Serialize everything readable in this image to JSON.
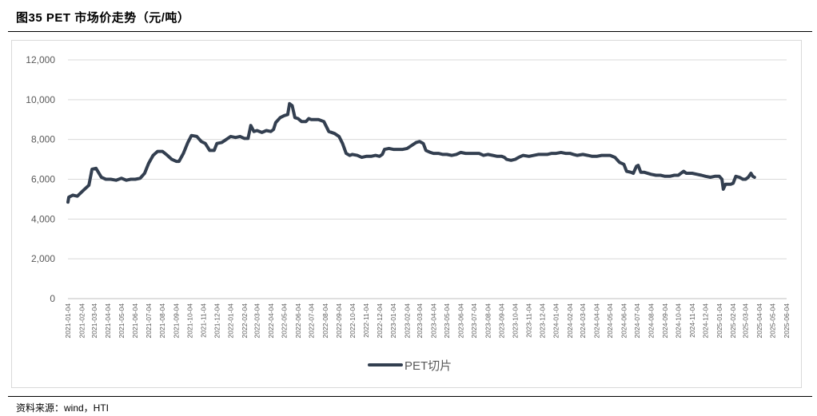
{
  "figure": {
    "title": "图35  PET 市场价走势（元/吨）",
    "source": "资料来源：wind，HTI"
  },
  "chart_data": {
    "type": "line",
    "title": "",
    "xlabel": "",
    "ylabel": "",
    "ylim": [
      0,
      12000
    ],
    "yticks": [
      0,
      2000,
      4000,
      6000,
      8000,
      10000,
      12000
    ],
    "ytick_labels": [
      "0",
      "2,000",
      "4,000",
      "6,000",
      "8,000",
      "10,000",
      "12,000"
    ],
    "xticks": [
      "2021-01-04",
      "2021-02-04",
      "2021-03-04",
      "2021-04-04",
      "2021-05-04",
      "2021-06-04",
      "2021-07-04",
      "2021-08-04",
      "2021-09-04",
      "2021-10-04",
      "2021-11-04",
      "2021-12-04",
      "2022-01-04",
      "2022-02-04",
      "2022-03-04",
      "2022-04-04",
      "2022-05-04",
      "2022-06-04",
      "2022-07-04",
      "2022-08-04",
      "2022-09-04",
      "2022-10-04",
      "2022-11-04",
      "2022-12-04",
      "2023-01-04",
      "2023-02-04",
      "2023-03-04",
      "2023-04-04",
      "2023-05-04",
      "2023-06-04",
      "2023-07-04",
      "2023-08-04",
      "2023-09-04",
      "2023-10-04",
      "2023-11-04",
      "2023-12-04",
      "2024-01-04",
      "2024-02-04",
      "2024-03-04",
      "2024-04-04",
      "2024-05-04",
      "2024-06-04",
      "2024-07-04",
      "2024-08-04",
      "2024-09-04",
      "2024-10-04",
      "2024-11-04",
      "2024-12-04",
      "2025-01-04",
      "2025-02-04",
      "2025-03-04",
      "2025-04-04",
      "2025-05-04",
      "2025-06-04"
    ],
    "grid": true,
    "legend": "bottom",
    "series": [
      {
        "name": "PET切片",
        "color": "#333f50",
        "points": [
          [
            "2021-01-04",
            4850
          ],
          [
            "2021-01-06",
            5100
          ],
          [
            "2021-01-15",
            5200
          ],
          [
            "2021-01-25",
            5150
          ],
          [
            "2021-02-08",
            5450
          ],
          [
            "2021-02-20",
            5700
          ],
          [
            "2021-02-27",
            6500
          ],
          [
            "2021-03-08",
            6550
          ],
          [
            "2021-03-20",
            6100
          ],
          [
            "2021-03-30",
            6000
          ],
          [
            "2021-04-10",
            6000
          ],
          [
            "2021-04-22",
            5950
          ],
          [
            "2021-05-04",
            6050
          ],
          [
            "2021-05-15",
            5950
          ],
          [
            "2021-05-25",
            6000
          ],
          [
            "2021-06-04",
            6000
          ],
          [
            "2021-06-15",
            6050
          ],
          [
            "2021-06-25",
            6300
          ],
          [
            "2021-07-04",
            6800
          ],
          [
            "2021-07-14",
            7200
          ],
          [
            "2021-07-24",
            7400
          ],
          [
            "2021-08-04",
            7400
          ],
          [
            "2021-08-15",
            7200
          ],
          [
            "2021-08-25",
            7000
          ],
          [
            "2021-09-04",
            6900
          ],
          [
            "2021-09-10",
            6900
          ],
          [
            "2021-09-20",
            7300
          ],
          [
            "2021-09-30",
            7850
          ],
          [
            "2021-10-08",
            8200
          ],
          [
            "2021-10-20",
            8150
          ],
          [
            "2021-10-30",
            7900
          ],
          [
            "2021-11-08",
            7800
          ],
          [
            "2021-11-18",
            7450
          ],
          [
            "2021-11-28",
            7450
          ],
          [
            "2021-12-04",
            7800
          ],
          [
            "2021-12-15",
            7850
          ],
          [
            "2021-12-25",
            8000
          ],
          [
            "2022-01-04",
            8150
          ],
          [
            "2022-01-15",
            8100
          ],
          [
            "2022-01-25",
            8150
          ],
          [
            "2022-02-04",
            8050
          ],
          [
            "2022-02-12",
            8050
          ],
          [
            "2022-02-18",
            8700
          ],
          [
            "2022-02-25",
            8400
          ],
          [
            "2022-03-04",
            8450
          ],
          [
            "2022-03-15",
            8350
          ],
          [
            "2022-03-25",
            8450
          ],
          [
            "2022-04-04",
            8400
          ],
          [
            "2022-04-10",
            8500
          ],
          [
            "2022-04-15",
            8850
          ],
          [
            "2022-04-25",
            9100
          ],
          [
            "2022-05-04",
            9200
          ],
          [
            "2022-05-12",
            9250
          ],
          [
            "2022-05-16",
            9800
          ],
          [
            "2022-05-22",
            9700
          ],
          [
            "2022-05-28",
            9100
          ],
          [
            "2022-06-04",
            9050
          ],
          [
            "2022-06-12",
            8900
          ],
          [
            "2022-06-22",
            8900
          ],
          [
            "2022-06-28",
            9050
          ],
          [
            "2022-07-04",
            9000
          ],
          [
            "2022-07-20",
            9000
          ],
          [
            "2022-08-01",
            8900
          ],
          [
            "2022-08-12",
            8400
          ],
          [
            "2022-08-25",
            8300
          ],
          [
            "2022-09-04",
            8150
          ],
          [
            "2022-09-12",
            7800
          ],
          [
            "2022-09-20",
            7300
          ],
          [
            "2022-09-28",
            7200
          ],
          [
            "2022-10-04",
            7250
          ],
          [
            "2022-10-15",
            7200
          ],
          [
            "2022-10-25",
            7100
          ],
          [
            "2022-11-04",
            7150
          ],
          [
            "2022-11-15",
            7150
          ],
          [
            "2022-11-25",
            7200
          ],
          [
            "2022-12-04",
            7150
          ],
          [
            "2022-12-10",
            7250
          ],
          [
            "2022-12-15",
            7500
          ],
          [
            "2022-12-25",
            7550
          ],
          [
            "2023-01-04",
            7500
          ],
          [
            "2023-01-15",
            7500
          ],
          [
            "2023-01-25",
            7500
          ],
          [
            "2023-02-04",
            7550
          ],
          [
            "2023-02-14",
            7700
          ],
          [
            "2023-02-24",
            7850
          ],
          [
            "2023-03-04",
            7900
          ],
          [
            "2023-03-12",
            7800
          ],
          [
            "2023-03-18",
            7450
          ],
          [
            "2023-03-28",
            7350
          ],
          [
            "2023-04-04",
            7300
          ],
          [
            "2023-04-15",
            7300
          ],
          [
            "2023-04-25",
            7250
          ],
          [
            "2023-05-04",
            7250
          ],
          [
            "2023-05-15",
            7200
          ],
          [
            "2023-05-25",
            7250
          ],
          [
            "2023-06-04",
            7350
          ],
          [
            "2023-06-15",
            7300
          ],
          [
            "2023-06-25",
            7300
          ],
          [
            "2023-07-04",
            7300
          ],
          [
            "2023-07-15",
            7300
          ],
          [
            "2023-07-25",
            7200
          ],
          [
            "2023-08-04",
            7250
          ],
          [
            "2023-08-15",
            7200
          ],
          [
            "2023-08-25",
            7150
          ],
          [
            "2023-09-04",
            7150
          ],
          [
            "2023-09-10",
            7100
          ],
          [
            "2023-09-15",
            7000
          ],
          [
            "2023-09-25",
            6950
          ],
          [
            "2023-10-04",
            7000
          ],
          [
            "2023-10-12",
            7100
          ],
          [
            "2023-10-22",
            7200
          ],
          [
            "2023-11-04",
            7150
          ],
          [
            "2023-11-15",
            7200
          ],
          [
            "2023-11-25",
            7250
          ],
          [
            "2023-12-04",
            7250
          ],
          [
            "2023-12-15",
            7250
          ],
          [
            "2023-12-25",
            7300
          ],
          [
            "2024-01-04",
            7300
          ],
          [
            "2024-01-15",
            7350
          ],
          [
            "2024-01-25",
            7300
          ],
          [
            "2024-02-04",
            7300
          ],
          [
            "2024-02-12",
            7250
          ],
          [
            "2024-02-20",
            7200
          ],
          [
            "2024-03-04",
            7250
          ],
          [
            "2024-03-15",
            7200
          ],
          [
            "2024-03-25",
            7150
          ],
          [
            "2024-04-04",
            7150
          ],
          [
            "2024-04-15",
            7200
          ],
          [
            "2024-04-25",
            7200
          ],
          [
            "2024-05-04",
            7200
          ],
          [
            "2024-05-15",
            7100
          ],
          [
            "2024-05-25",
            6850
          ],
          [
            "2024-06-04",
            6750
          ],
          [
            "2024-06-10",
            6400
          ],
          [
            "2024-06-20",
            6350
          ],
          [
            "2024-06-25",
            6300
          ],
          [
            "2024-07-02",
            6650
          ],
          [
            "2024-07-06",
            6700
          ],
          [
            "2024-07-12",
            6350
          ],
          [
            "2024-07-20",
            6350
          ],
          [
            "2024-08-04",
            6250
          ],
          [
            "2024-08-15",
            6200
          ],
          [
            "2024-08-25",
            6200
          ],
          [
            "2024-09-04",
            6150
          ],
          [
            "2024-09-15",
            6150
          ],
          [
            "2024-09-25",
            6200
          ],
          [
            "2024-10-04",
            6200
          ],
          [
            "2024-10-10",
            6300
          ],
          [
            "2024-10-16",
            6400
          ],
          [
            "2024-10-22",
            6300
          ],
          [
            "2024-11-04",
            6300
          ],
          [
            "2024-11-15",
            6250
          ],
          [
            "2024-11-25",
            6200
          ],
          [
            "2024-12-04",
            6150
          ],
          [
            "2024-12-15",
            6100
          ],
          [
            "2024-12-25",
            6150
          ],
          [
            "2025-01-04",
            6150
          ],
          [
            "2025-01-10",
            6000
          ],
          [
            "2025-01-13",
            5500
          ],
          [
            "2025-01-18",
            5750
          ],
          [
            "2025-01-30",
            5750
          ],
          [
            "2025-02-04",
            5800
          ],
          [
            "2025-02-10",
            6150
          ],
          [
            "2025-02-18",
            6100
          ],
          [
            "2025-02-26",
            6000
          ],
          [
            "2025-03-04",
            6000
          ],
          [
            "2025-03-10",
            6100
          ],
          [
            "2025-03-16",
            6300
          ],
          [
            "2025-03-20",
            6150
          ],
          [
            "2025-03-24",
            6100
          ]
        ]
      }
    ]
  }
}
